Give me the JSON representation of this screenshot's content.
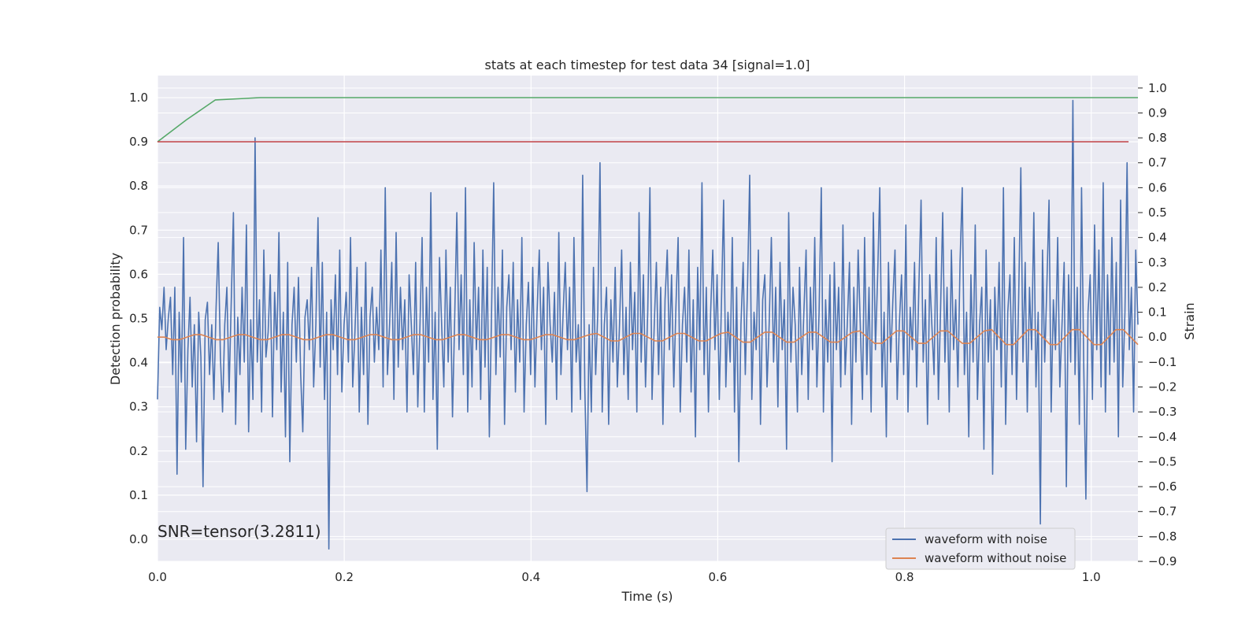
{
  "chart_data": {
    "type": "line",
    "title": "stats at each timestep for test data 34 [signal=1.0]",
    "xlabel": "Time (s)",
    "ylabel_left": "Detection probability",
    "ylabel_right": "Strain",
    "xlim": [
      0.0,
      1.05
    ],
    "ylim_left": [
      -0.05,
      1.05
    ],
    "ylim_right": [
      -0.9,
      1.05
    ],
    "x_ticks": [
      "0.0",
      "0.2",
      "0.4",
      "0.6",
      "0.8",
      "1.0"
    ],
    "x_tick_values": [
      0.0,
      0.2,
      0.4,
      0.6,
      0.8,
      1.0
    ],
    "y_left_ticks": [
      "0.0",
      "0.1",
      "0.2",
      "0.3",
      "0.4",
      "0.5",
      "0.6",
      "0.7",
      "0.8",
      "0.9",
      "1.0"
    ],
    "y_left_tick_values": [
      0.0,
      0.1,
      0.2,
      0.3,
      0.4,
      0.5,
      0.6,
      0.7,
      0.8,
      0.9,
      1.0
    ],
    "y_right_ticks": [
      "−0.9",
      "−0.8",
      "−0.7",
      "−0.6",
      "−0.5",
      "−0.4",
      "−0.3",
      "−0.2",
      "−0.1",
      "0.0",
      "0.1",
      "0.2",
      "0.3",
      "0.4",
      "0.5",
      "0.6",
      "0.7",
      "0.8",
      "0.9",
      "1.0"
    ],
    "y_right_tick_values": [
      -0.9,
      -0.8,
      -0.7,
      -0.6,
      -0.5,
      -0.4,
      -0.3,
      -0.2,
      -0.1,
      0.0,
      0.1,
      0.2,
      0.3,
      0.4,
      0.5,
      0.6,
      0.7,
      0.8,
      0.9,
      1.0
    ],
    "grid": true,
    "legend_position": "lower-right",
    "annotation": "SNR=tensor(3.2811)",
    "colors": {
      "noisy": "#4c72b0",
      "clean": "#dd8452",
      "probability": "#55a868",
      "threshold": "#c44e52",
      "background": "#eaeaf2",
      "grid": "#ffffff"
    },
    "series": [
      {
        "name": "waveform with noise",
        "axis": "right",
        "x_start": 0.0,
        "x_end": 1.05,
        "values": [
          -0.25,
          0.12,
          0.03,
          0.2,
          -0.05,
          0.08,
          0.16,
          -0.15,
          0.2,
          -0.55,
          0.1,
          -0.18,
          0.4,
          -0.45,
          -0.05,
          0.16,
          -0.2,
          0.05,
          -0.42,
          0.1,
          -0.08,
          -0.6,
          0.07,
          0.14,
          -0.15,
          0.05,
          -0.25,
          0.12,
          0.38,
          -0.08,
          -0.3,
          0.05,
          0.2,
          -0.22,
          0.15,
          0.5,
          -0.35,
          0.08,
          -0.15,
          0.2,
          -0.1,
          0.45,
          -0.38,
          0.07,
          -0.25,
          0.8,
          -0.1,
          0.15,
          -0.3,
          0.35,
          -0.08,
          0.02,
          0.25,
          -0.32,
          0.18,
          -0.05,
          0.42,
          -0.22,
          0.1,
          -0.4,
          0.3,
          -0.5,
          0.05,
          0.2,
          -0.1,
          0.24,
          -0.15,
          -0.38,
          0.08,
          0.15,
          -0.05,
          0.28,
          -0.2,
          0.05,
          0.48,
          -0.12,
          0.3,
          -0.25,
          0.1,
          -0.85,
          0.15,
          -0.05,
          0.25,
          -0.15,
          0.35,
          -0.22,
          0.05,
          0.18,
          -0.1,
          0.4,
          -0.2,
          0.02,
          0.28,
          -0.3,
          0.12,
          -0.15,
          0.3,
          -0.35,
          0.08,
          0.2,
          -0.1,
          0.12,
          -0.05,
          0.35,
          -0.2,
          0.6,
          -0.15,
          0.05,
          0.3,
          -0.25,
          0.42,
          -0.12,
          0.2,
          -0.05,
          0.15,
          -0.3,
          0.25,
          0.05,
          -0.15,
          0.3,
          -0.28,
          0.05,
          0.4,
          -0.3,
          0.2,
          -0.1,
          0.58,
          -0.25,
          0.1,
          -0.45,
          0.32,
          0.05,
          -0.2,
          0.35,
          -0.1,
          0.2,
          -0.32,
          0.08,
          0.5,
          -0.05,
          0.25,
          -0.15,
          0.6,
          -0.3,
          0.15,
          -0.2,
          0.38,
          -0.05,
          0.2,
          -0.25,
          0.35,
          -0.12,
          0.28,
          -0.4,
          0.1,
          0.62,
          -0.15,
          0.2,
          -0.08,
          0.35,
          -0.35,
          0.12,
          0.25,
          -0.05,
          0.3,
          -0.22,
          0.15,
          -0.1,
          0.4,
          -0.3,
          0.05,
          0.22,
          -0.15,
          0.28,
          -0.2,
          0.1,
          0.35,
          -0.05,
          0.2,
          -0.35,
          0.3,
          0.05,
          -0.1,
          0.18,
          -0.25,
          0.42,
          -0.15,
          0.1,
          0.3,
          -0.05,
          0.2,
          -0.3,
          0.4,
          -0.1,
          0.05,
          -0.25,
          0.65,
          -0.2,
          -0.62,
          0.05,
          -0.3,
          0.28,
          -0.15,
          0.1,
          0.7,
          -0.3,
          0.05,
          0.2,
          -0.35,
          0.15,
          -0.1,
          0.28,
          -0.2,
          0.05,
          0.35,
          -0.15,
          0.12,
          -0.25,
          0.3,
          -0.05,
          0.18,
          -0.3,
          0.5,
          -0.1,
          0.25,
          -0.2,
          0.1,
          0.6,
          -0.25,
          0.05,
          0.3,
          -0.15,
          0.2,
          -0.35,
          0.15,
          0.35,
          -0.05,
          0.25,
          -0.2,
          0.12,
          0.4,
          -0.3,
          0.05,
          0.2,
          -0.1,
          0.35,
          -0.22,
          0.15,
          -0.4,
          0.28,
          -0.05,
          0.62,
          -0.15,
          0.2,
          -0.3,
          0.1,
          0.35,
          -0.05,
          0.25,
          -0.25,
          0.15,
          0.55,
          -0.2,
          0.1,
          -0.1,
          0.4,
          -0.3,
          0.2,
          -0.5,
          0.05,
          0.3,
          -0.15,
          0.2,
          0.65,
          -0.25,
          0.1,
          -0.05,
          0.35,
          -0.35,
          0.15,
          0.25,
          -0.2,
          0.05,
          0.4,
          -0.1,
          0.2,
          -0.28,
          0.3,
          -0.05,
          0.15,
          -0.45,
          0.5,
          -0.1,
          0.2,
          0.05,
          -0.3,
          0.28,
          -0.15,
          0.1,
          0.35,
          -0.25,
          0.2,
          -0.05,
          0.4,
          -0.2,
          0.1,
          0.6,
          -0.3,
          0.15,
          -0.1,
          0.25,
          -0.5,
          0.3,
          -0.05,
          0.2,
          -0.2,
          0.45,
          -0.15,
          0.05,
          0.3,
          -0.35,
          0.2,
          -0.1,
          0.35,
          0.05,
          -0.25,
          0.4,
          -0.15,
          0.2,
          -0.3,
          0.5,
          -0.05,
          0.25,
          0.6,
          -0.2,
          0.1,
          -0.4,
          0.3,
          -0.1,
          0.15,
          0.35,
          -0.25,
          0.05,
          0.25,
          -0.15,
          0.45,
          -0.3,
          0.12,
          -0.05,
          0.3,
          -0.2,
          0.2,
          0.55,
          -0.1,
          0.15,
          -0.35,
          0.25,
          0.05,
          -0.15,
          0.4,
          -0.25,
          0.1,
          0.5,
          -0.1,
          0.2,
          -0.3,
          0.35,
          -0.05,
          0.15,
          -0.2,
          0.3,
          0.6,
          -0.15,
          0.1,
          -0.4,
          0.25,
          -0.1,
          0.45,
          -0.25,
          0.05,
          0.2,
          -0.45,
          0.35,
          -0.1,
          0.15,
          -0.55,
          0.2,
          -0.05,
          0.3,
          -0.2,
          0.6,
          -0.35,
          0.1,
          0.25,
          -0.15,
          0.4,
          -0.25,
          0.15,
          0.68,
          -0.1,
          0.3,
          -0.3,
          0.2,
          -0.05,
          0.5,
          -0.2,
          0.1,
          -0.75,
          0.35,
          -0.1,
          0.2,
          0.55,
          -0.3,
          0.15,
          -0.05,
          0.4,
          -0.2,
          0.05,
          0.3,
          -0.6,
          0.25,
          -0.1,
          0.95,
          -0.15,
          0.2,
          -0.35,
          0.6,
          -0.1,
          -0.65,
          0.1,
          0.25,
          -0.25,
          0.45,
          -0.05,
          0.35,
          -0.2,
          0.62,
          -0.3,
          0.25,
          -0.15,
          0.4,
          -0.1,
          0.3,
          -0.4,
          0.55,
          -0.2,
          0.1,
          0.7,
          -0.05,
          0.2,
          -0.3,
          0.35,
          0.05
        ],
        "note_values": "sampled approximation of noisy strain read from the plot"
      },
      {
        "name": "waveform without noise",
        "axis": "right",
        "x_start": 0.0,
        "x_end": 1.05,
        "values": [
          0.0,
          0.0,
          -0.01,
          -0.01,
          0.0,
          0.01,
          0.01,
          0.0,
          -0.01,
          -0.01,
          0.0,
          0.01,
          0.01,
          0.0,
          -0.01,
          -0.01,
          0.0,
          0.01,
          0.01,
          0.0,
          -0.01,
          -0.01,
          0.0,
          0.01,
          0.01,
          0.0,
          -0.01,
          -0.01,
          0.0,
          0.01,
          0.01,
          0.0,
          -0.01,
          -0.01,
          0.0,
          0.01,
          0.01,
          0.0,
          -0.01,
          -0.01,
          0.0,
          0.01,
          0.01,
          0.0,
          -0.01,
          -0.01,
          0.0,
          0.01,
          0.01,
          0.0,
          -0.01,
          -0.01,
          0.0,
          0.01,
          0.01,
          0.0,
          -0.01,
          -0.01,
          0.0,
          0.01,
          0.015,
          0.0,
          -0.015,
          -0.015,
          0.0,
          0.015,
          0.015,
          0.0,
          -0.015,
          -0.015,
          0.0,
          0.015,
          0.015,
          0.0,
          -0.015,
          -0.015,
          0.0,
          0.015,
          0.02,
          0.0,
          -0.02,
          -0.02,
          0.0,
          0.02,
          0.02,
          0.0,
          -0.02,
          -0.02,
          0.0,
          0.02,
          0.02,
          0.0,
          -0.02,
          -0.02,
          0.0,
          0.02,
          0.025,
          0.0,
          -0.025,
          -0.025,
          0.0,
          0.025,
          0.025,
          0.0,
          -0.025,
          -0.025,
          0.0,
          0.025,
          0.025,
          0.0,
          -0.025,
          -0.025,
          0.0,
          0.025,
          0.03,
          0.0,
          -0.03,
          -0.03,
          0.0,
          0.03,
          0.03,
          0.0,
          -0.03,
          -0.03,
          0.0,
          0.03,
          0.03,
          0.0,
          -0.03,
          -0.03,
          0.0,
          0.03,
          0.03,
          0.0,
          -0.03
        ]
      },
      {
        "name": "",
        "axis": "left",
        "x": [
          0.0,
          0.031,
          0.062,
          0.11,
          0.16,
          1.05
        ],
        "values": [
          0.9,
          0.95,
          0.995,
          1.0,
          1.0,
          1.0
        ]
      },
      {
        "name": "",
        "axis": "left",
        "x": [
          0.0,
          1.04
        ],
        "values": [
          0.9,
          0.9
        ]
      }
    ]
  }
}
